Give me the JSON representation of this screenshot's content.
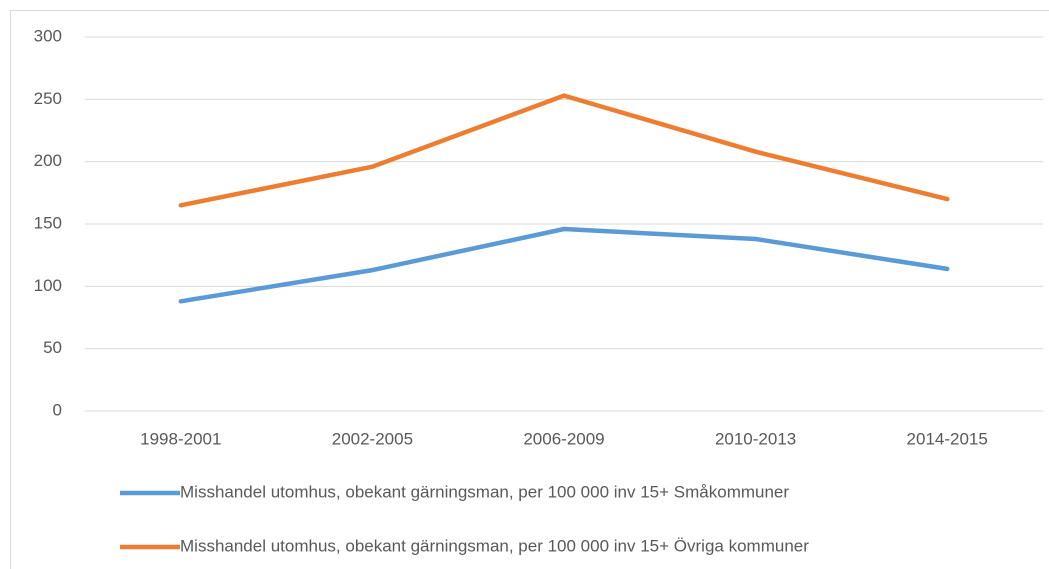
{
  "chart_data": {
    "type": "line",
    "categories": [
      "1998-2001",
      "2002-2005",
      "2006-2009",
      "2010-2013",
      "2014-2015"
    ],
    "series": [
      {
        "name": "Misshandel utomhus, obekant gärningsman, per 100 000 inv 15+ Småkommuner",
        "color": "#5b9bd5",
        "values": [
          88,
          113,
          146,
          138,
          114
        ]
      },
      {
        "name": "Misshandel utomhus, obekant gärningsman, per 100 000 inv 15+ Övriga kommuner",
        "color": "#ed7d31",
        "values": [
          165,
          196,
          253,
          208,
          170
        ]
      }
    ],
    "ylim": [
      0,
      300
    ],
    "yticks": [
      0,
      50,
      100,
      150,
      200,
      250,
      300
    ],
    "grid": true,
    "legend": "bottom"
  }
}
